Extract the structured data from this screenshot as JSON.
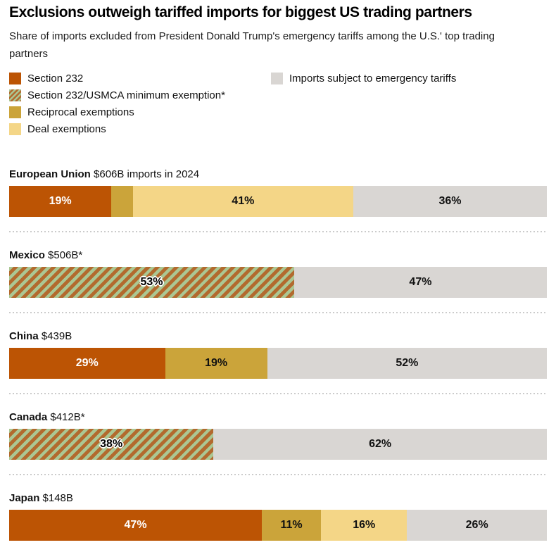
{
  "header": {
    "title": "Exclusions outweigh tariffed imports for biggest US trading partners",
    "subtitle": "Share of imports excluded from President Donald Trump's emergency tariffs among the U.S.' top trading partners"
  },
  "colors": {
    "section232": "#BC5404",
    "usmca_stripe": "#B26A2E",
    "usmca_bg": "#ABC793",
    "reciprocal": "#CBA43A",
    "deal": "#F4D687",
    "tariffed": "#D9D6D3",
    "text": "#111111",
    "separator_dots": "#CBCBCB"
  },
  "legend": {
    "left": [
      {
        "key": "section232",
        "label": "Section 232"
      },
      {
        "key": "usmca",
        "label": "Section 232/USMCA minimum exemption*"
      },
      {
        "key": "reciprocal",
        "label": "Reciprocal exemptions"
      },
      {
        "key": "deal",
        "label": "Deal exemptions"
      }
    ],
    "right": [
      {
        "key": "tariffed",
        "label": "Imports subject to emergency tariffs"
      }
    ]
  },
  "chart_data": {
    "type": "bar",
    "orientation": "horizontal-stacked",
    "unit": "%",
    "xlim": [
      0,
      100
    ],
    "title": "Exclusions outweigh tariffed imports for biggest US trading partners",
    "subtitle": "Share of imports excluded from President Donald Trump's emergency tariffs among the U.S.' top trading partners",
    "legend_entries": [
      "Section 232",
      "Section 232/USMCA minimum exemption*",
      "Reciprocal exemptions",
      "Deal exemptions",
      "Imports subject to emergency tariffs"
    ],
    "rows": [
      {
        "name": "European Union",
        "value_label": "$606B imports in 2024",
        "segments": [
          {
            "key": "section232",
            "series": "Section 232",
            "pct": 19,
            "label": "19%"
          },
          {
            "key": "reciprocal",
            "series": "Reciprocal exemptions",
            "pct": 4,
            "label": ""
          },
          {
            "key": "deal",
            "series": "Deal exemptions",
            "pct": 41,
            "label": "41%"
          },
          {
            "key": "tariffed",
            "series": "Imports subject to emergency tariffs",
            "pct": 36,
            "label": "36%"
          }
        ]
      },
      {
        "name": "Mexico",
        "value_label": "$506B*",
        "segments": [
          {
            "key": "usmca",
            "series": "Section 232/USMCA minimum exemption*",
            "pct": 53,
            "label": "53%"
          },
          {
            "key": "tariffed",
            "series": "Imports subject to emergency tariffs",
            "pct": 47,
            "label": "47%"
          }
        ]
      },
      {
        "name": "China",
        "value_label": "$439B",
        "segments": [
          {
            "key": "section232",
            "series": "Section 232",
            "pct": 29,
            "label": "29%"
          },
          {
            "key": "reciprocal",
            "series": "Reciprocal exemptions",
            "pct": 19,
            "label": "19%"
          },
          {
            "key": "tariffed",
            "series": "Imports subject to emergency tariffs",
            "pct": 52,
            "label": "52%"
          }
        ]
      },
      {
        "name": "Canada",
        "value_label": "$412B*",
        "segments": [
          {
            "key": "usmca",
            "series": "Section 232/USMCA minimum exemption*",
            "pct": 38,
            "label": "38%"
          },
          {
            "key": "tariffed",
            "series": "Imports subject to emergency tariffs",
            "pct": 62,
            "label": "62%"
          }
        ]
      },
      {
        "name": "Japan",
        "value_label": "$148B",
        "segments": [
          {
            "key": "section232",
            "series": "Section 232",
            "pct": 47,
            "label": "47%"
          },
          {
            "key": "reciprocal",
            "series": "Reciprocal exemptions",
            "pct": 11,
            "label": "11%"
          },
          {
            "key": "deal",
            "series": "Deal exemptions",
            "pct": 16,
            "label": "16%"
          },
          {
            "key": "tariffed",
            "series": "Imports subject to emergency tariffs",
            "pct": 26,
            "label": "26%"
          }
        ]
      }
    ]
  }
}
